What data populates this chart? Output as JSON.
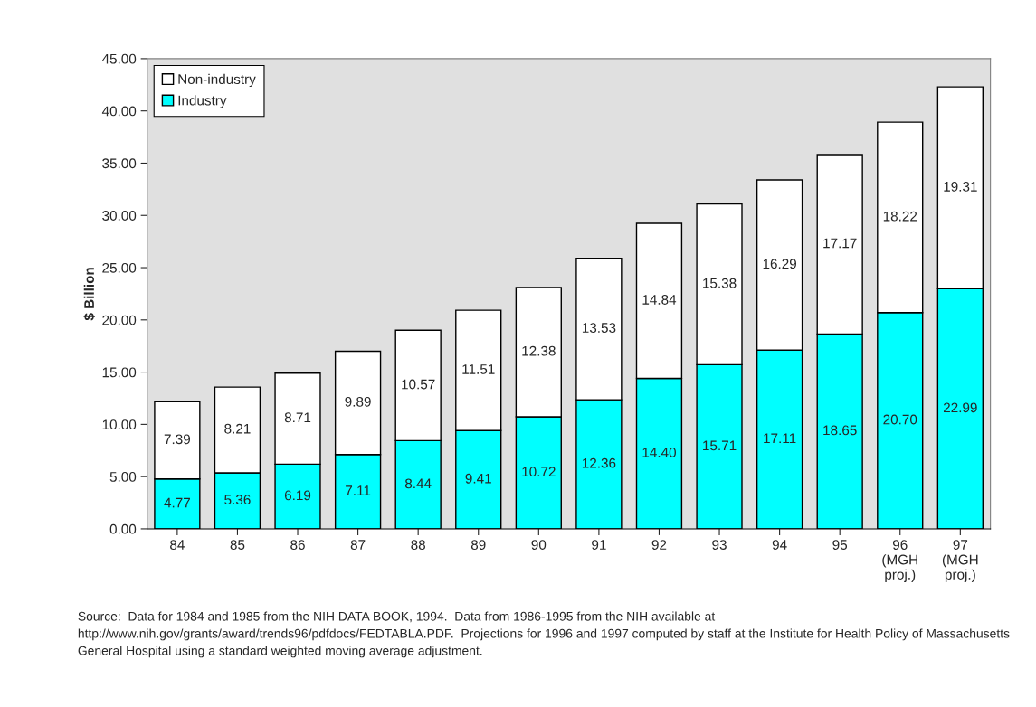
{
  "chart_data": {
    "type": "bar",
    "stacked": true,
    "ylabel": "$ Billion",
    "categories": [
      "84",
      "85",
      "86",
      "87",
      "88",
      "89",
      "90",
      "91",
      "92",
      "93",
      "94",
      "95",
      "96\n(MGH\nproj.)",
      "97\n(MGH\nproj.)"
    ],
    "series": [
      {
        "name": "Industry",
        "color": "#00ffff",
        "values": [
          4.77,
          5.36,
          6.19,
          7.11,
          8.44,
          9.41,
          10.72,
          12.36,
          14.4,
          15.71,
          17.11,
          18.65,
          20.7,
          22.99
        ],
        "value_labels": [
          "4.77",
          "5.36",
          "6.19",
          "7.11",
          "8.44",
          "9.41",
          "10.72",
          "12.36",
          "14.40",
          "15.71",
          "17.11",
          "18.65",
          "20.70",
          "22.99"
        ]
      },
      {
        "name": "Non-industry",
        "color": "#ffffff",
        "values": [
          7.39,
          8.21,
          8.71,
          9.89,
          10.57,
          11.51,
          12.38,
          13.53,
          14.84,
          15.38,
          16.29,
          17.17,
          18.22,
          19.31
        ],
        "value_labels": [
          "7.39",
          "8.21",
          "8.71",
          "9.89",
          "10.57",
          "11.51",
          "12.38",
          "13.53",
          "14.84",
          "15.38",
          "16.29",
          "17.17",
          "18.22",
          "19.31"
        ]
      }
    ],
    "ylim": [
      0,
      45
    ],
    "yticks": [
      {
        "value": 0,
        "label": "0.00"
      },
      {
        "value": 5,
        "label": "5.00"
      },
      {
        "value": 10,
        "label": "10.00"
      },
      {
        "value": 15,
        "label": "15.00"
      },
      {
        "value": 20,
        "label": "20.00"
      },
      {
        "value": 25,
        "label": "25.00"
      },
      {
        "value": 30,
        "label": "30.00"
      },
      {
        "value": 35,
        "label": "35.00"
      },
      {
        "value": 40,
        "label": "40.00"
      },
      {
        "value": 45,
        "label": "45.00"
      }
    ],
    "grid": false,
    "legend": "top left",
    "annotations": [
      "Source:  Data for 1984 and 1985 from the NIH DATA BOOK, 1994.  Data from 1986-1995 from the NIH available at http://www.nih.gov/grants/award/trends96/pdfdocs/FEDTABLA.PDF.  Projections for 1996 and 1997 computed by staff at the Institute for Health Policy of Massachusetts General Hospital using a standard weighted moving average adjustment."
    ]
  }
}
